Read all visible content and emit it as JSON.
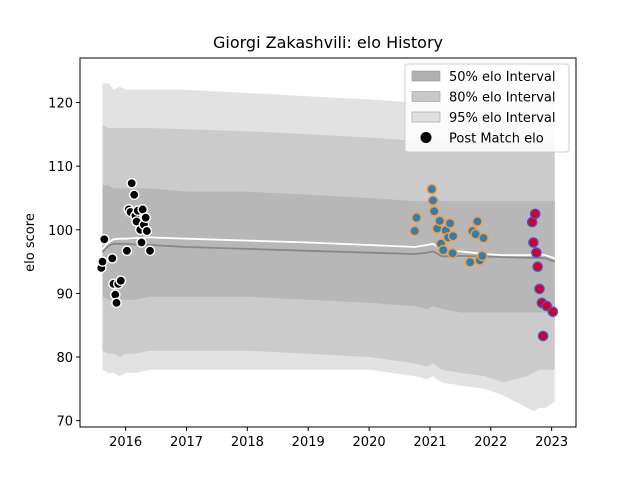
{
  "chart_data": {
    "type": "scatter",
    "title": "Giorgi Zakashvili: elo History",
    "xlabel": "",
    "ylabel": "elo score",
    "xlim": [
      2015.25,
      2023.4
    ],
    "ylim": [
      69,
      127
    ],
    "x_ticks": [
      2016,
      2017,
      2018,
      2019,
      2020,
      2021,
      2022,
      2023
    ],
    "x_tick_labels": [
      "2016",
      "2017",
      "2018",
      "2019",
      "2020",
      "2021",
      "2022",
      "2023"
    ],
    "y_ticks": [
      70,
      80,
      90,
      100,
      110,
      120
    ],
    "y_tick_labels": [
      "70",
      "80",
      "90",
      "100",
      "110",
      "120"
    ],
    "grid": false,
    "legend_position": "top-right",
    "legend": [
      {
        "label": "50% elo Interval",
        "kind": "patch",
        "color": "#b0b0b0"
      },
      {
        "label": "80% elo Interval",
        "kind": "patch",
        "color": "#c8c8c8"
      },
      {
        "label": "95% elo Interval",
        "kind": "patch",
        "color": "#e0e0e0"
      },
      {
        "label": "Post Match elo",
        "kind": "marker",
        "color": "#000000"
      }
    ],
    "colors": {
      "band50": "#b7b7b7",
      "band80": "#cbcbcb",
      "band95": "#e2e2e2",
      "mean_line": "#888888",
      "median_line": "#ffffff"
    },
    "bands": {
      "x": [
        2015.62,
        2015.72,
        2015.8,
        2015.9,
        2016.0,
        2016.15,
        2016.4,
        2017.0,
        2018.0,
        2019.0,
        2020.0,
        2020.75,
        2020.95,
        2021.05,
        2021.2,
        2021.5,
        2021.9,
        2022.2,
        2022.6,
        2022.7,
        2022.8,
        2022.9,
        2023.05
      ],
      "p95_upper": [
        123,
        123,
        122,
        122.5,
        122,
        122,
        122,
        122,
        121.5,
        121,
        120.5,
        120,
        120,
        120.5,
        120,
        120,
        120,
        120,
        120,
        120.5,
        121,
        120,
        121
      ],
      "p95_lower": [
        78,
        77.5,
        77.5,
        77,
        77.5,
        77.5,
        78,
        78,
        78,
        78,
        78,
        77,
        76.5,
        77,
        76,
        75.5,
        75,
        74,
        72,
        71.5,
        72,
        72,
        73
      ],
      "p80_upper": [
        116.5,
        116,
        116,
        116,
        116,
        116,
        116,
        115.8,
        115.5,
        115,
        114.5,
        114,
        114,
        114.5,
        114,
        114,
        114,
        114,
        114,
        114,
        114.5,
        114,
        114
      ],
      "p80_lower": [
        81,
        80.5,
        80.5,
        80,
        80.5,
        80.5,
        81,
        81,
        81,
        80.5,
        80,
        79,
        78.5,
        79,
        78,
        77.5,
        77,
        76,
        77,
        77.5,
        78,
        78,
        78
      ],
      "p50_upper": [
        107,
        107,
        106.5,
        106.5,
        106.5,
        106.5,
        106.5,
        106,
        106,
        105.5,
        105,
        104.5,
        104.5,
        105,
        104.5,
        104.5,
        104.5,
        104.5,
        104.5,
        104.5,
        104.5,
        104.5,
        104.5
      ],
      "p50_lower": [
        89.5,
        89,
        89,
        89,
        89,
        89,
        89.5,
        89.5,
        89.5,
        89,
        88.5,
        88,
        87.5,
        88,
        87.5,
        87,
        87,
        87,
        87,
        87,
        87,
        87,
        87
      ],
      "mean": [
        96.5,
        97.5,
        97.8,
        97.8,
        97.8,
        97.7,
        97.6,
        97.3,
        97.0,
        96.7,
        96.4,
        96.2,
        96.4,
        96.6,
        95.8,
        95.9,
        95.8,
        95.7,
        95.6,
        95.6,
        95.6,
        95.5,
        95.0
      ],
      "median": [
        97.0,
        98.0,
        98.5,
        98.6,
        98.6,
        98.7,
        98.8,
        98.6,
        98.3,
        98.0,
        97.6,
        97.3,
        97.6,
        97.8,
        96.8,
        96.6,
        96.2,
        96.0,
        96.0,
        96.1,
        96.2,
        96.0,
        95.5
      ]
    },
    "series": [
      {
        "segment": "2015-2016",
        "face": "#000000",
        "edge": "#ffffff",
        "points": [
          [
            2015.6,
            94
          ],
          [
            2015.62,
            95
          ],
          [
            2015.65,
            98.5
          ],
          [
            2015.78,
            95.5
          ],
          [
            2015.8,
            91.5
          ],
          [
            2015.83,
            89.8
          ],
          [
            2015.85,
            88.5
          ],
          [
            2015.88,
            91.5
          ],
          [
            2015.92,
            92
          ],
          [
            2016.02,
            96.7
          ],
          [
            2016.05,
            103.2
          ],
          [
            2016.08,
            102.8
          ],
          [
            2016.1,
            107.3
          ],
          [
            2016.14,
            105.5
          ],
          [
            2016.16,
            102.2
          ],
          [
            2016.18,
            101.3
          ],
          [
            2016.2,
            103
          ],
          [
            2016.24,
            100
          ],
          [
            2016.26,
            98
          ],
          [
            2016.28,
            103.2
          ],
          [
            2016.3,
            100.8
          ],
          [
            2016.33,
            101.9
          ],
          [
            2016.35,
            99.8
          ],
          [
            2016.4,
            96.7
          ]
        ]
      },
      {
        "segment": "2020-2021",
        "face": "#2f7fb3",
        "edge": "#ff9a3c",
        "points": [
          [
            2020.75,
            99.8
          ],
          [
            2020.78,
            101.9
          ],
          [
            2021.03,
            106.4
          ],
          [
            2021.05,
            104.6
          ],
          [
            2021.07,
            102.9
          ],
          [
            2021.12,
            100.2
          ],
          [
            2021.16,
            101.4
          ],
          [
            2021.18,
            97.8
          ],
          [
            2021.22,
            96.8
          ],
          [
            2021.26,
            99.9
          ],
          [
            2021.3,
            98.8
          ],
          [
            2021.33,
            101
          ],
          [
            2021.37,
            96.3
          ],
          [
            2021.38,
            99
          ],
          [
            2021.66,
            94.9
          ],
          [
            2021.7,
            99.8
          ],
          [
            2021.75,
            99.3
          ],
          [
            2021.78,
            101.3
          ],
          [
            2021.82,
            95.2
          ],
          [
            2021.86,
            95.9
          ],
          [
            2021.88,
            98.7
          ]
        ]
      },
      {
        "segment": "2022-2023",
        "face": "#d0002a",
        "edge": "#5050c8",
        "points": [
          [
            2022.68,
            101.2
          ],
          [
            2022.7,
            98
          ],
          [
            2022.73,
            102.5
          ],
          [
            2022.75,
            96.4
          ],
          [
            2022.77,
            94.2
          ],
          [
            2022.8,
            90.7
          ],
          [
            2022.84,
            88.5
          ],
          [
            2022.86,
            83.3
          ],
          [
            2022.92,
            88
          ],
          [
            2023.02,
            87.1
          ]
        ]
      }
    ]
  }
}
